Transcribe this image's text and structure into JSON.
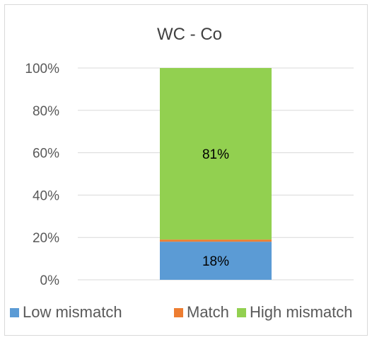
{
  "chart_data": {
    "type": "bar",
    "stacked": true,
    "percent_stacked": true,
    "title": "WC - Co",
    "categories": [
      ""
    ],
    "series": [
      {
        "name": "Low mismatch",
        "values": [
          18
        ],
        "color": "#5b9bd5",
        "label": "18%"
      },
      {
        "name": "Match",
        "values": [
          1
        ],
        "color": "#ed7d31",
        "label": ""
      },
      {
        "name": "High mismatch",
        "values": [
          81
        ],
        "color": "#92d050",
        "label": "81%"
      }
    ],
    "ylim": [
      0,
      100
    ],
    "yticks": [
      "0%",
      "20%",
      "40%",
      "60%",
      "80%",
      "100%"
    ],
    "ytick_values": [
      0,
      20,
      40,
      60,
      80,
      100
    ],
    "grid": true,
    "legend_position": "bottom"
  }
}
